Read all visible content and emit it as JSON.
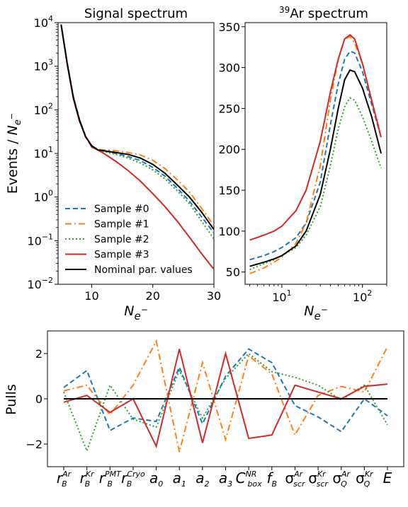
{
  "chart_data": [
    {
      "type": "line",
      "title": "Signal spectrum",
      "xlabel": "N_e-",
      "ylabel": "Events / N_e-",
      "xscale": "linear",
      "yscale": "log",
      "xlim": [
        4.5,
        30
      ],
      "ylim": [
        0.01,
        10000
      ],
      "xticks": [
        "10",
        "20",
        "30"
      ],
      "yticks": [
        {
          "base": "10",
          "exp": "−2"
        },
        {
          "base": "10",
          "exp": "−1"
        },
        {
          "base": "10",
          "exp": "0"
        },
        {
          "base": "10",
          "exp": "1"
        },
        {
          "base": "10",
          "exp": "2"
        },
        {
          "base": "10",
          "exp": "3"
        },
        {
          "base": "10",
          "exp": "4"
        }
      ],
      "legend_position": "lower-left",
      "series": [
        {
          "name": "Sample #0",
          "color": "#1f77b4",
          "style": "dashed",
          "points": [
            [
              5,
              9000
            ],
            [
              6,
              1200
            ],
            [
              7,
              200
            ],
            [
              8,
              60
            ],
            [
              9,
              25
            ],
            [
              10,
              15
            ],
            [
              11,
              12
            ],
            [
              12,
              11.5
            ],
            [
              14,
              10
            ],
            [
              16,
              8.5
            ],
            [
              18,
              6.8
            ],
            [
              20,
              4.8
            ],
            [
              22,
              3.0
            ],
            [
              24,
              1.6
            ],
            [
              26,
              0.8
            ],
            [
              28,
              0.35
            ],
            [
              30,
              0.15
            ]
          ]
        },
        {
          "name": "Sample #1",
          "color": "#ff7f0e",
          "style": "dashdot",
          "points": [
            [
              5,
              9000
            ],
            [
              6,
              1100
            ],
            [
              7,
              180
            ],
            [
              8,
              55
            ],
            [
              9,
              25
            ],
            [
              10,
              15
            ],
            [
              11,
              12.5
            ],
            [
              12,
              12
            ],
            [
              14,
              11.5
            ],
            [
              16,
              10.5
            ],
            [
              18,
              9.2
            ],
            [
              20,
              7.0
            ],
            [
              22,
              4.5
            ],
            [
              24,
              2.5
            ],
            [
              26,
              1.3
            ],
            [
              28,
              0.55
            ],
            [
              30,
              0.22
            ]
          ]
        },
        {
          "name": "Sample #2",
          "color": "#2ca02c",
          "style": "dotted",
          "points": [
            [
              5,
              9000
            ],
            [
              6,
              1200
            ],
            [
              7,
              200
            ],
            [
              8,
              60
            ],
            [
              9,
              25
            ],
            [
              10,
              15
            ],
            [
              11,
              12
            ],
            [
              12,
              11
            ],
            [
              14,
              9.5
            ],
            [
              16,
              7.8
            ],
            [
              18,
              6.0
            ],
            [
              20,
              4.2
            ],
            [
              22,
              2.6
            ],
            [
              24,
              1.4
            ],
            [
              26,
              0.7
            ],
            [
              28,
              0.28
            ],
            [
              30,
              0.11
            ]
          ]
        },
        {
          "name": "Sample #3",
          "color": "#d62728",
          "style": "solid",
          "points": [
            [
              5,
              9000
            ],
            [
              6,
              1100
            ],
            [
              7,
              180
            ],
            [
              8,
              55
            ],
            [
              9,
              25
            ],
            [
              10,
              14
            ],
            [
              11,
              12
            ],
            [
              12,
              10
            ],
            [
              14,
              6.5
            ],
            [
              16,
              4.0
            ],
            [
              18,
              2.3
            ],
            [
              20,
              1.2
            ],
            [
              22,
              0.6
            ],
            [
              24,
              0.28
            ],
            [
              26,
              0.12
            ],
            [
              28,
              0.05
            ],
            [
              30,
              0.022
            ]
          ]
        },
        {
          "name": "Nominal par. values",
          "color": "#000000",
          "style": "solid",
          "points": [
            [
              5,
              9000
            ],
            [
              6,
              1150
            ],
            [
              7,
              190
            ],
            [
              8,
              58
            ],
            [
              9,
              24
            ],
            [
              10,
              15
            ],
            [
              11,
              12
            ],
            [
              12,
              11.5
            ],
            [
              14,
              10.5
            ],
            [
              16,
              9.5
            ],
            [
              18,
              7.8
            ],
            [
              20,
              5.6
            ],
            [
              22,
              3.5
            ],
            [
              24,
              1.9
            ],
            [
              26,
              1.0
            ],
            [
              28,
              0.45
            ],
            [
              30,
              0.18
            ]
          ]
        }
      ]
    },
    {
      "type": "line",
      "title": "39Ar spectrum",
      "title_sup": "39",
      "title_main": "Ar spectrum",
      "xlabel": "N_e-",
      "xscale": "log",
      "yscale": "linear",
      "xlim": [
        3.5,
        200
      ],
      "ylim": [
        35,
        355
      ],
      "xticks": [
        {
          "base": "10",
          "exp": "1"
        },
        {
          "base": "10",
          "exp": "2"
        }
      ],
      "yticks": [
        "50",
        "100",
        "150",
        "200",
        "250",
        "300",
        "350"
      ],
      "series": [
        {
          "name": "Sample #0",
          "color": "#1f77b4",
          "style": "dashed",
          "points": [
            [
              4,
              65
            ],
            [
              6,
              70
            ],
            [
              8,
              75
            ],
            [
              10,
              80
            ],
            [
              15,
              92
            ],
            [
              20,
              110
            ],
            [
              30,
              160
            ],
            [
              40,
              230
            ],
            [
              50,
              280
            ],
            [
              60,
              310
            ],
            [
              70,
              320
            ],
            [
              80,
              318
            ],
            [
              100,
              295
            ],
            [
              130,
              255
            ],
            [
              170,
              215
            ]
          ]
        },
        {
          "name": "Sample #1",
          "color": "#ff7f0e",
          "style": "dashdot",
          "points": [
            [
              4,
              48
            ],
            [
              6,
              55
            ],
            [
              8,
              62
            ],
            [
              10,
              68
            ],
            [
              15,
              85
            ],
            [
              20,
              110
            ],
            [
              30,
              180
            ],
            [
              40,
              260
            ],
            [
              50,
              310
            ],
            [
              60,
              335
            ],
            [
              70,
              338
            ],
            [
              80,
              330
            ],
            [
              100,
              305
            ],
            [
              130,
              260
            ],
            [
              170,
              215
            ]
          ]
        },
        {
          "name": "Sample #2",
          "color": "#2ca02c",
          "style": "dotted",
          "points": [
            [
              4,
              53
            ],
            [
              6,
              60
            ],
            [
              8,
              65
            ],
            [
              10,
              70
            ],
            [
              15,
              80
            ],
            [
              20,
              95
            ],
            [
              30,
              130
            ],
            [
              40,
              180
            ],
            [
              50,
              225
            ],
            [
              60,
              252
            ],
            [
              70,
              263
            ],
            [
              80,
              260
            ],
            [
              100,
              240
            ],
            [
              130,
              210
            ],
            [
              170,
              177
            ]
          ]
        },
        {
          "name": "Sample #3",
          "color": "#d62728",
          "style": "solid",
          "points": [
            [
              4,
              89
            ],
            [
              6,
              95
            ],
            [
              8,
              100
            ],
            [
              10,
              106
            ],
            [
              15,
              125
            ],
            [
              20,
              150
            ],
            [
              30,
              210
            ],
            [
              40,
              270
            ],
            [
              50,
              310
            ],
            [
              60,
              335
            ],
            [
              70,
              340
            ],
            [
              80,
              335
            ],
            [
              100,
              305
            ],
            [
              130,
              260
            ],
            [
              170,
              215
            ]
          ]
        },
        {
          "name": "Nominal par. values",
          "color": "#000000",
          "style": "solid",
          "points": [
            [
              4,
              57
            ],
            [
              6,
              62
            ],
            [
              8,
              66
            ],
            [
              10,
              70
            ],
            [
              15,
              82
            ],
            [
              20,
              100
            ],
            [
              30,
              145
            ],
            [
              40,
              200
            ],
            [
              50,
              250
            ],
            [
              60,
              285
            ],
            [
              70,
              297
            ],
            [
              80,
              295
            ],
            [
              100,
              275
            ],
            [
              130,
              240
            ],
            [
              170,
              195
            ]
          ]
        }
      ]
    },
    {
      "type": "line",
      "ylabel": "Pulls",
      "ylim": [
        -3,
        3
      ],
      "yticks": [
        "−2",
        "0",
        "2"
      ],
      "categories": [
        {
          "base": "r",
          "sub": "B",
          "sup": "Ar"
        },
        {
          "base": "r",
          "sub": "B",
          "sup": "Kr"
        },
        {
          "base": "r",
          "sub": "B",
          "sup": "PMT"
        },
        {
          "base": "r",
          "sub": "B",
          "sup": "Cryo"
        },
        {
          "base": "a",
          "sub": "0",
          "sup": ""
        },
        {
          "base": "a",
          "sub": "1",
          "sup": ""
        },
        {
          "base": "a",
          "sub": "2",
          "sup": ""
        },
        {
          "base": "a",
          "sub": "3",
          "sup": ""
        },
        {
          "base": "C",
          "sub": "box",
          "sup": "NR"
        },
        {
          "base": "f",
          "sub": "B",
          "sup": ""
        },
        {
          "base": "σ",
          "sub": "scr",
          "sup": "Ar"
        },
        {
          "base": "σ",
          "sub": "scr",
          "sup": "Kr"
        },
        {
          "base": "σ",
          "sub": "Q",
          "sup": "Ar"
        },
        {
          "base": "σ",
          "sub": "Q",
          "sup": "Kr"
        },
        {
          "base": "E",
          "sub": "",
          "sup": ""
        }
      ],
      "series": [
        {
          "name": "Sample #0",
          "color": "#1f77b4",
          "style": "dashed",
          "values": [
            0.5,
            1.25,
            -1.4,
            -0.85,
            -1.0,
            1.4,
            -1.1,
            1.0,
            2.2,
            1.6,
            -0.3,
            -0.8,
            -1.45,
            0.0,
            -0.75
          ]
        },
        {
          "name": "Sample #1",
          "color": "#ff7f0e",
          "style": "dashdot",
          "values": [
            0.35,
            0.6,
            -0.7,
            0.6,
            2.55,
            -2.35,
            1.6,
            -1.8,
            1.9,
            1.1,
            -1.6,
            0.15,
            0.55,
            0.3,
            2.3
          ]
        },
        {
          "name": "Sample #2",
          "color": "#2ca02c",
          "style": "dotted",
          "values": [
            0.3,
            -2.3,
            0.6,
            -0.9,
            -1.25,
            1.25,
            -0.85,
            0.9,
            2.0,
            1.2,
            0.95,
            0.6,
            -0.05,
            0.6,
            -1.15
          ]
        },
        {
          "name": "Sample #3",
          "color": "#d62728",
          "style": "solid",
          "values": [
            -0.15,
            0.15,
            -0.6,
            0.0,
            -2.1,
            2.2,
            -1.95,
            2.0,
            -1.75,
            -1.6,
            0.6,
            0.3,
            0.0,
            0.55,
            0.65
          ]
        },
        {
          "name": "Nominal par. values",
          "color": "#000000",
          "style": "solid",
          "values": [
            0,
            0,
            0,
            0,
            0,
            0,
            0,
            0,
            0,
            0,
            0,
            0,
            0,
            0,
            0
          ]
        }
      ]
    }
  ]
}
